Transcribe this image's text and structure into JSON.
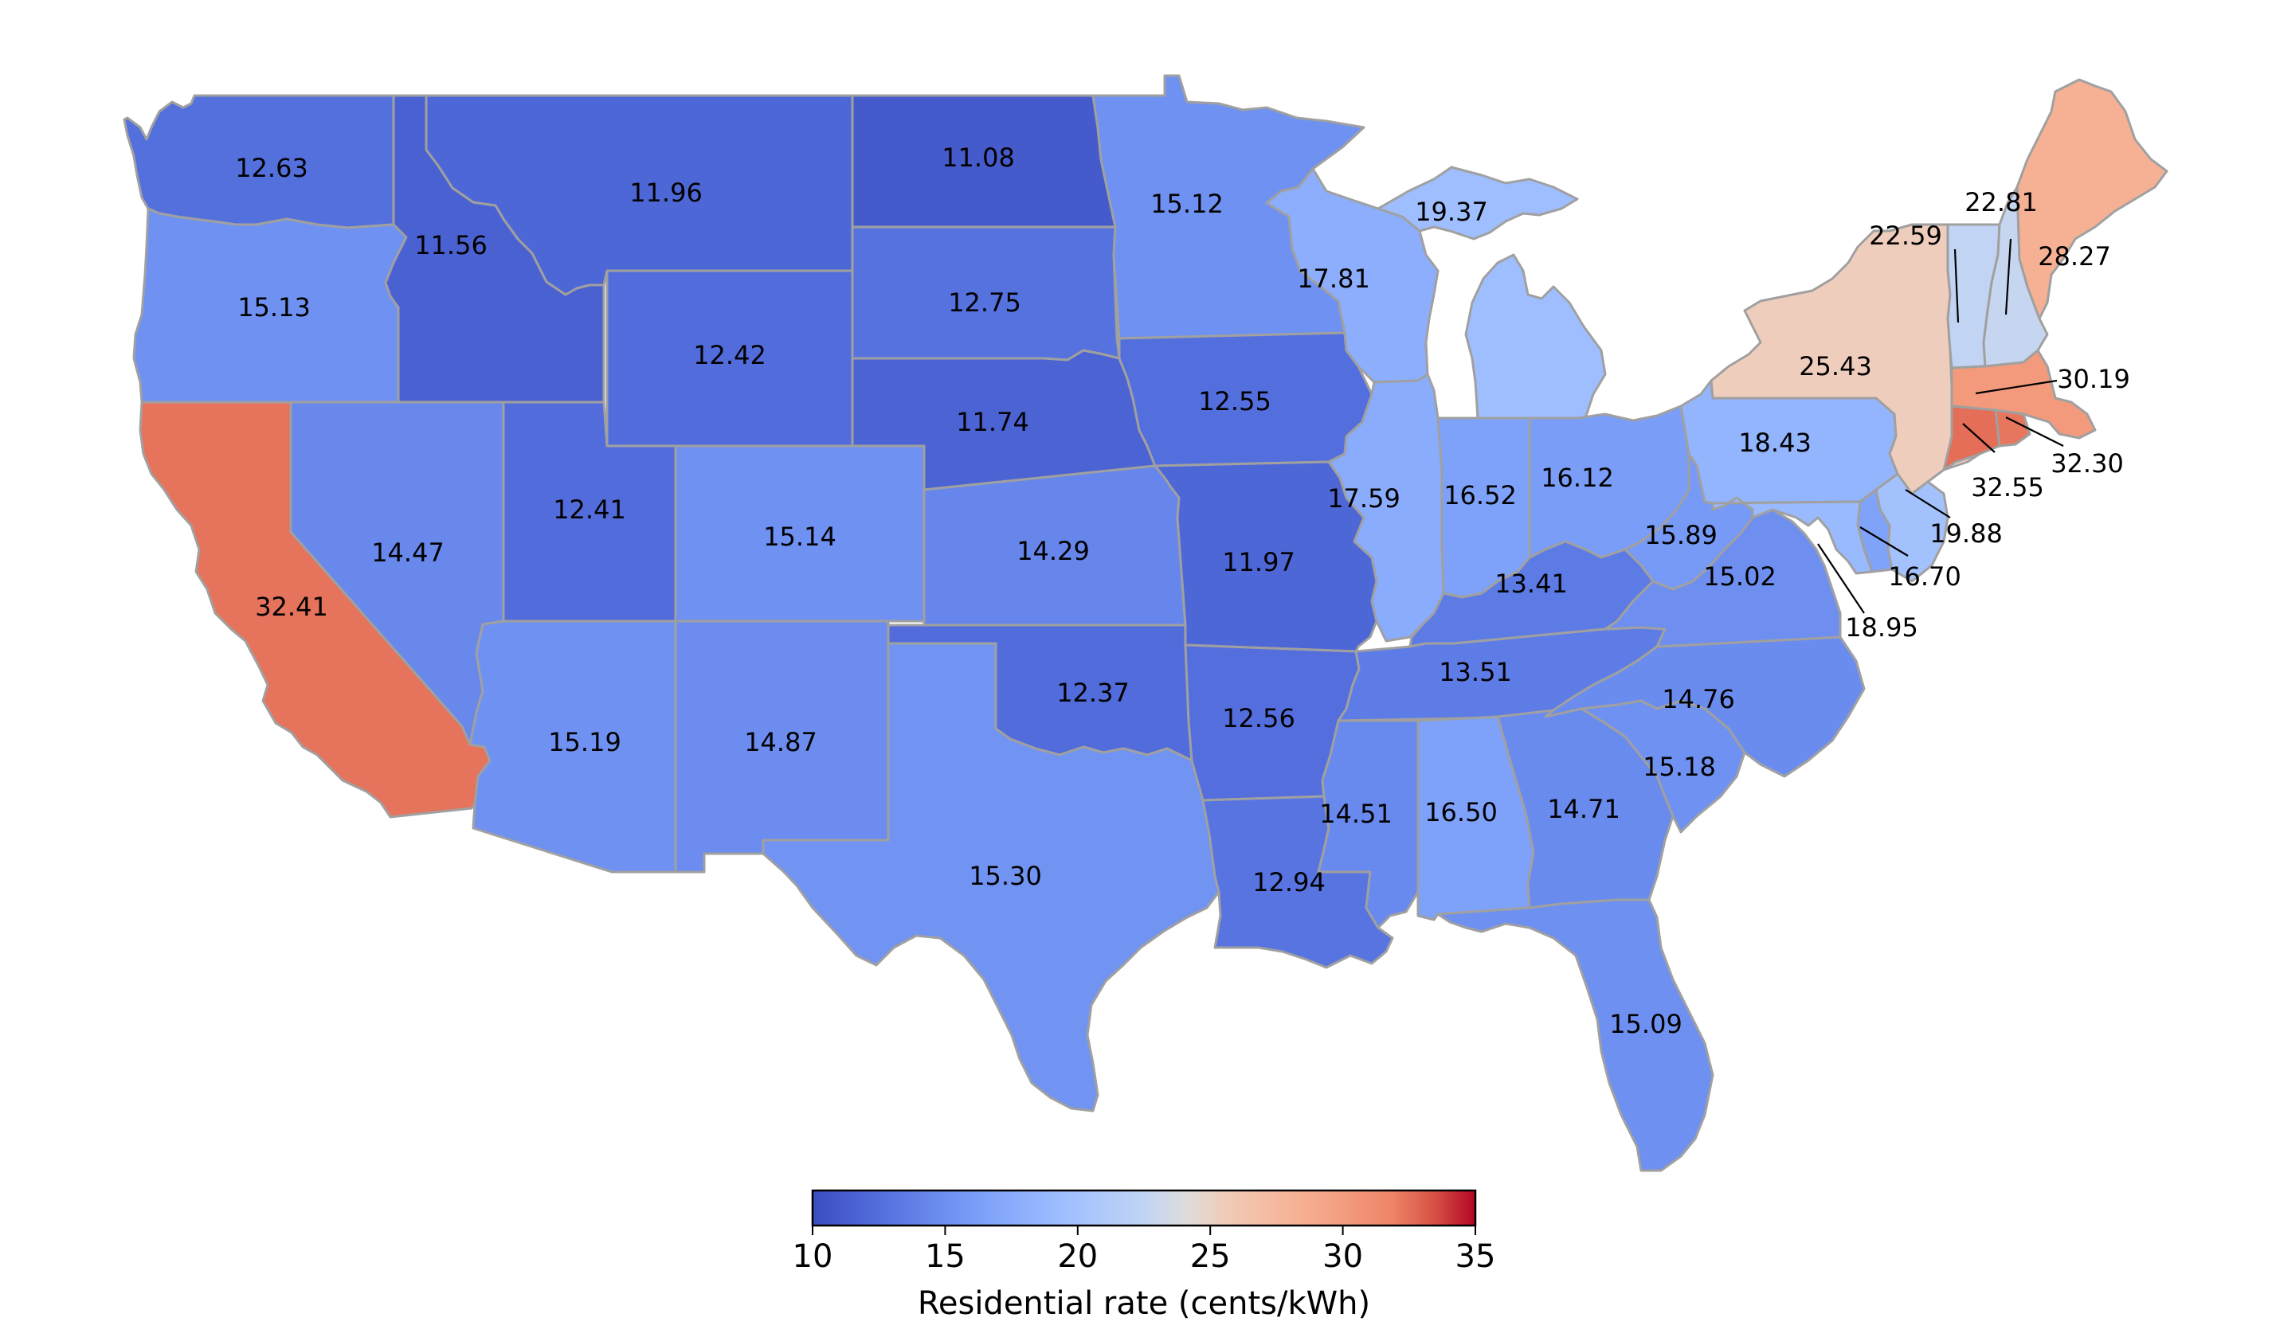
{
  "map": {
    "type": "choropleth",
    "region": "contiguous United States",
    "metric": "Residential electricity rate",
    "colormap": "coolwarm",
    "value_range": [
      10,
      35
    ],
    "state_border_color": "#a0a0a0",
    "states": [
      {
        "id": "WA",
        "value": 12.63,
        "label": "12.63"
      },
      {
        "id": "OR",
        "value": 15.13,
        "label": "15.13"
      },
      {
        "id": "CA",
        "value": 32.41,
        "label": "32.41"
      },
      {
        "id": "ID",
        "value": 11.56,
        "label": "11.56"
      },
      {
        "id": "NV",
        "value": 14.47,
        "label": "14.47"
      },
      {
        "id": "MT",
        "value": 11.96,
        "label": "11.96"
      },
      {
        "id": "WY",
        "value": 12.42,
        "label": "12.42"
      },
      {
        "id": "UT",
        "value": 12.41,
        "label": "12.41"
      },
      {
        "id": "AZ",
        "value": 15.19,
        "label": "15.19"
      },
      {
        "id": "CO",
        "value": 15.14,
        "label": "15.14"
      },
      {
        "id": "NM",
        "value": 14.87,
        "label": "14.87"
      },
      {
        "id": "ND",
        "value": 11.08,
        "label": "11.08"
      },
      {
        "id": "SD",
        "value": 12.75,
        "label": "12.75"
      },
      {
        "id": "NE",
        "value": 11.74,
        "label": "11.74"
      },
      {
        "id": "KS",
        "value": 14.29,
        "label": "14.29"
      },
      {
        "id": "OK",
        "value": 12.37,
        "label": "12.37"
      },
      {
        "id": "TX",
        "value": 15.3,
        "label": "15.30"
      },
      {
        "id": "MN",
        "value": 15.12,
        "label": "15.12"
      },
      {
        "id": "IA",
        "value": 12.55,
        "label": "12.55"
      },
      {
        "id": "MO",
        "value": 11.97,
        "label": "11.97"
      },
      {
        "id": "AR",
        "value": 12.56,
        "label": "12.56"
      },
      {
        "id": "LA",
        "value": 12.94,
        "label": "12.94"
      },
      {
        "id": "WI",
        "value": 17.81,
        "label": "17.81"
      },
      {
        "id": "IL",
        "value": 17.59,
        "label": "17.59"
      },
      {
        "id": "MI",
        "value": 19.37,
        "label": "19.37"
      },
      {
        "id": "IN",
        "value": 16.52,
        "label": "16.52"
      },
      {
        "id": "OH",
        "value": 16.12,
        "label": "16.12"
      },
      {
        "id": "KY",
        "value": 13.41,
        "label": "13.41"
      },
      {
        "id": "TN",
        "value": 13.51,
        "label": "13.51"
      },
      {
        "id": "MS",
        "value": 14.51,
        "label": "14.51"
      },
      {
        "id": "AL",
        "value": 16.5,
        "label": "16.50"
      },
      {
        "id": "GA",
        "value": 14.71,
        "label": "14.71"
      },
      {
        "id": "FL",
        "value": 15.09,
        "label": "15.09"
      },
      {
        "id": "SC",
        "value": 15.18,
        "label": "15.18"
      },
      {
        "id": "NC",
        "value": 14.76,
        "label": "14.76"
      },
      {
        "id": "VA",
        "value": 15.02,
        "label": "15.02"
      },
      {
        "id": "WV",
        "value": 15.89,
        "label": "15.89"
      },
      {
        "id": "PA",
        "value": 18.43,
        "label": "18.43"
      },
      {
        "id": "NY",
        "value": 25.43,
        "label": "25.43"
      },
      {
        "id": "VT",
        "value": 22.59,
        "label": "22.59"
      },
      {
        "id": "NH",
        "value": 22.81,
        "label": "22.81"
      },
      {
        "id": "ME",
        "value": 28.27,
        "label": "28.27"
      },
      {
        "id": "MA",
        "value": 30.19,
        "label": "30.19"
      },
      {
        "id": "RI",
        "value": 32.3,
        "label": "32.30"
      },
      {
        "id": "CT",
        "value": 32.55,
        "label": "32.55"
      },
      {
        "id": "NJ",
        "value": 19.88,
        "label": "19.88"
      },
      {
        "id": "DE",
        "value": 16.7,
        "label": "16.70"
      },
      {
        "id": "MD",
        "value": 18.95,
        "label": "18.95"
      }
    ]
  },
  "colorbar": {
    "min": 10,
    "max": 35,
    "ticks": [
      "10",
      "15",
      "20",
      "25",
      "30",
      "35"
    ],
    "label": "Residential rate (cents/kWh)"
  }
}
